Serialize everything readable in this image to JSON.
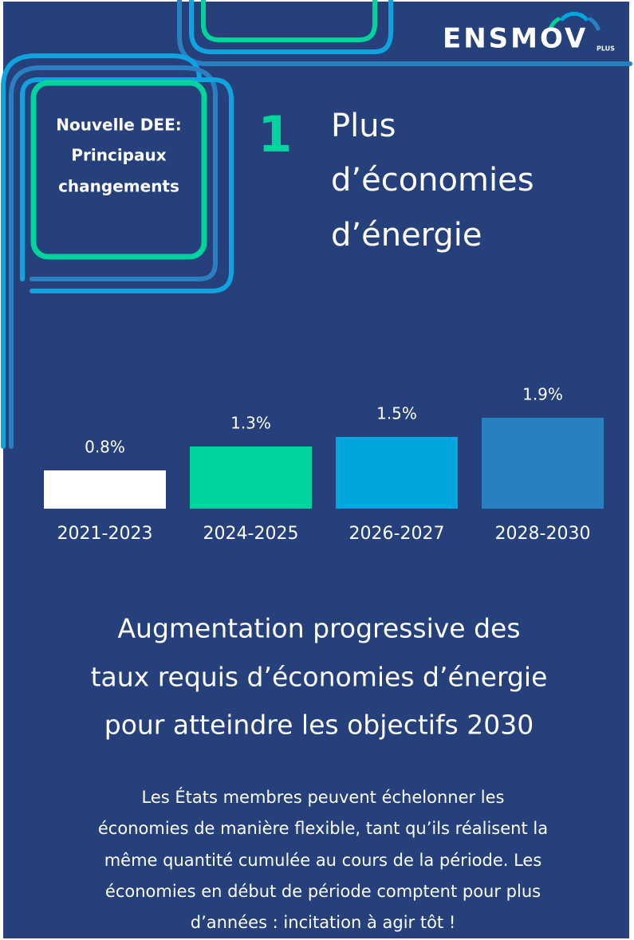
{
  "logo": {
    "name": "ENSMOV",
    "suffix": "PLUS"
  },
  "badge": [
    "Nouvelle DEE:",
    "Principaux",
    "changements"
  ],
  "number": "1",
  "heading": [
    "Plus",
    "d’économies",
    "d’énergie"
  ],
  "chart_data": {
    "type": "bar",
    "categories": [
      "2021-2023",
      "2024-2025",
      "2026-2027",
      "2028-2030"
    ],
    "values": [
      0.8,
      1.3,
      1.5,
      1.9
    ],
    "value_labels": [
      "0.8%",
      "1.3%",
      "1.5%",
      "1.9%"
    ],
    "colors": [
      "#ffffff",
      "#00d49c",
      "#00a6dd",
      "#2a7fc1"
    ]
  },
  "subtitle": [
    "Augmentation progressive des",
    "taux requis d’économies d’énergie",
    "pour atteindre les objectifs 2030"
  ],
  "body": [
    "Les États membres peuvent échelonner les",
    "économies de manière flexible, tant qu’ils réalisent la",
    "même quantité cumulée au cours de la période. Les",
    "économies en début de période comptent pour plus",
    "d’années : incitation à agir tôt !"
  ]
}
